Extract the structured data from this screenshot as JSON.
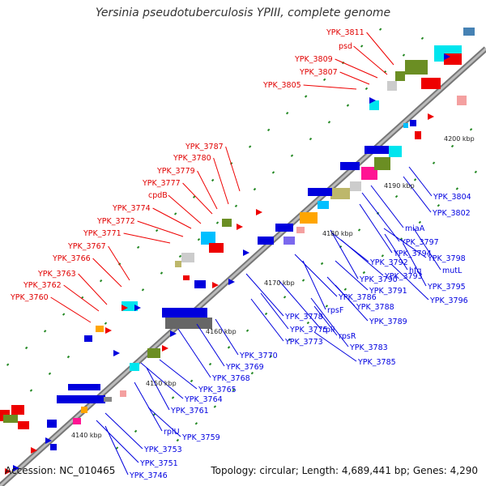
{
  "title": "Yersinia pseudotuberculosis YPIII, complete genome",
  "footer": {
    "accession": "Accession: NC_010465",
    "summary": "Topology: circular; Length: 4,689,441 bp; Genes: 4,290"
  },
  "kbp_labels": [
    "4140 kbp",
    "4150 kbp",
    "4160 kbp",
    "4170 kbp",
    "4180 kbp",
    "4190 kbp",
    "4200 kbp"
  ],
  "labels_red": [
    "YPK_3811",
    "psd",
    "YPK_3809",
    "YPK_3807",
    "YPK_3805",
    "YPK_3787",
    "YPK_3780",
    "YPK_3779",
    "YPK_3777",
    "cpdB",
    "YPK_3774",
    "YPK_3772",
    "YPK_3771",
    "YPK_3767",
    "YPK_3766",
    "YPK_3763",
    "YPK_3762",
    "YPK_3760"
  ],
  "labels_blue": [
    "YPK_3804",
    "YPK_3802",
    "miaA",
    "YPK_3797",
    "YPK_3798",
    "hfq",
    "mutL",
    "YPK_3794",
    "YPK_3792",
    "YPK_3793",
    "YPK_3795",
    "YPK_3790",
    "YPK_3791",
    "YPK_3796",
    "YPK_3786",
    "rpsF",
    "YPK_3788",
    "YPK_3789",
    "YPK_3778",
    "rplI",
    "rpsR",
    "YPK_3775",
    "YPK_3773",
    "YPK_3783",
    "YPK_3785",
    "YPK_3770",
    "YPK_3769",
    "YPK_3768",
    "YPK_3765",
    "YPK_3764",
    "YPK_3761",
    "rplU",
    "YPK_3759",
    "YPK_3753",
    "YPK_3751",
    "YPK_3746"
  ],
  "colors": {
    "forward": "#ee0000",
    "reverse": "#0000dd",
    "backbone": "#888888",
    "tick": "#228822"
  }
}
